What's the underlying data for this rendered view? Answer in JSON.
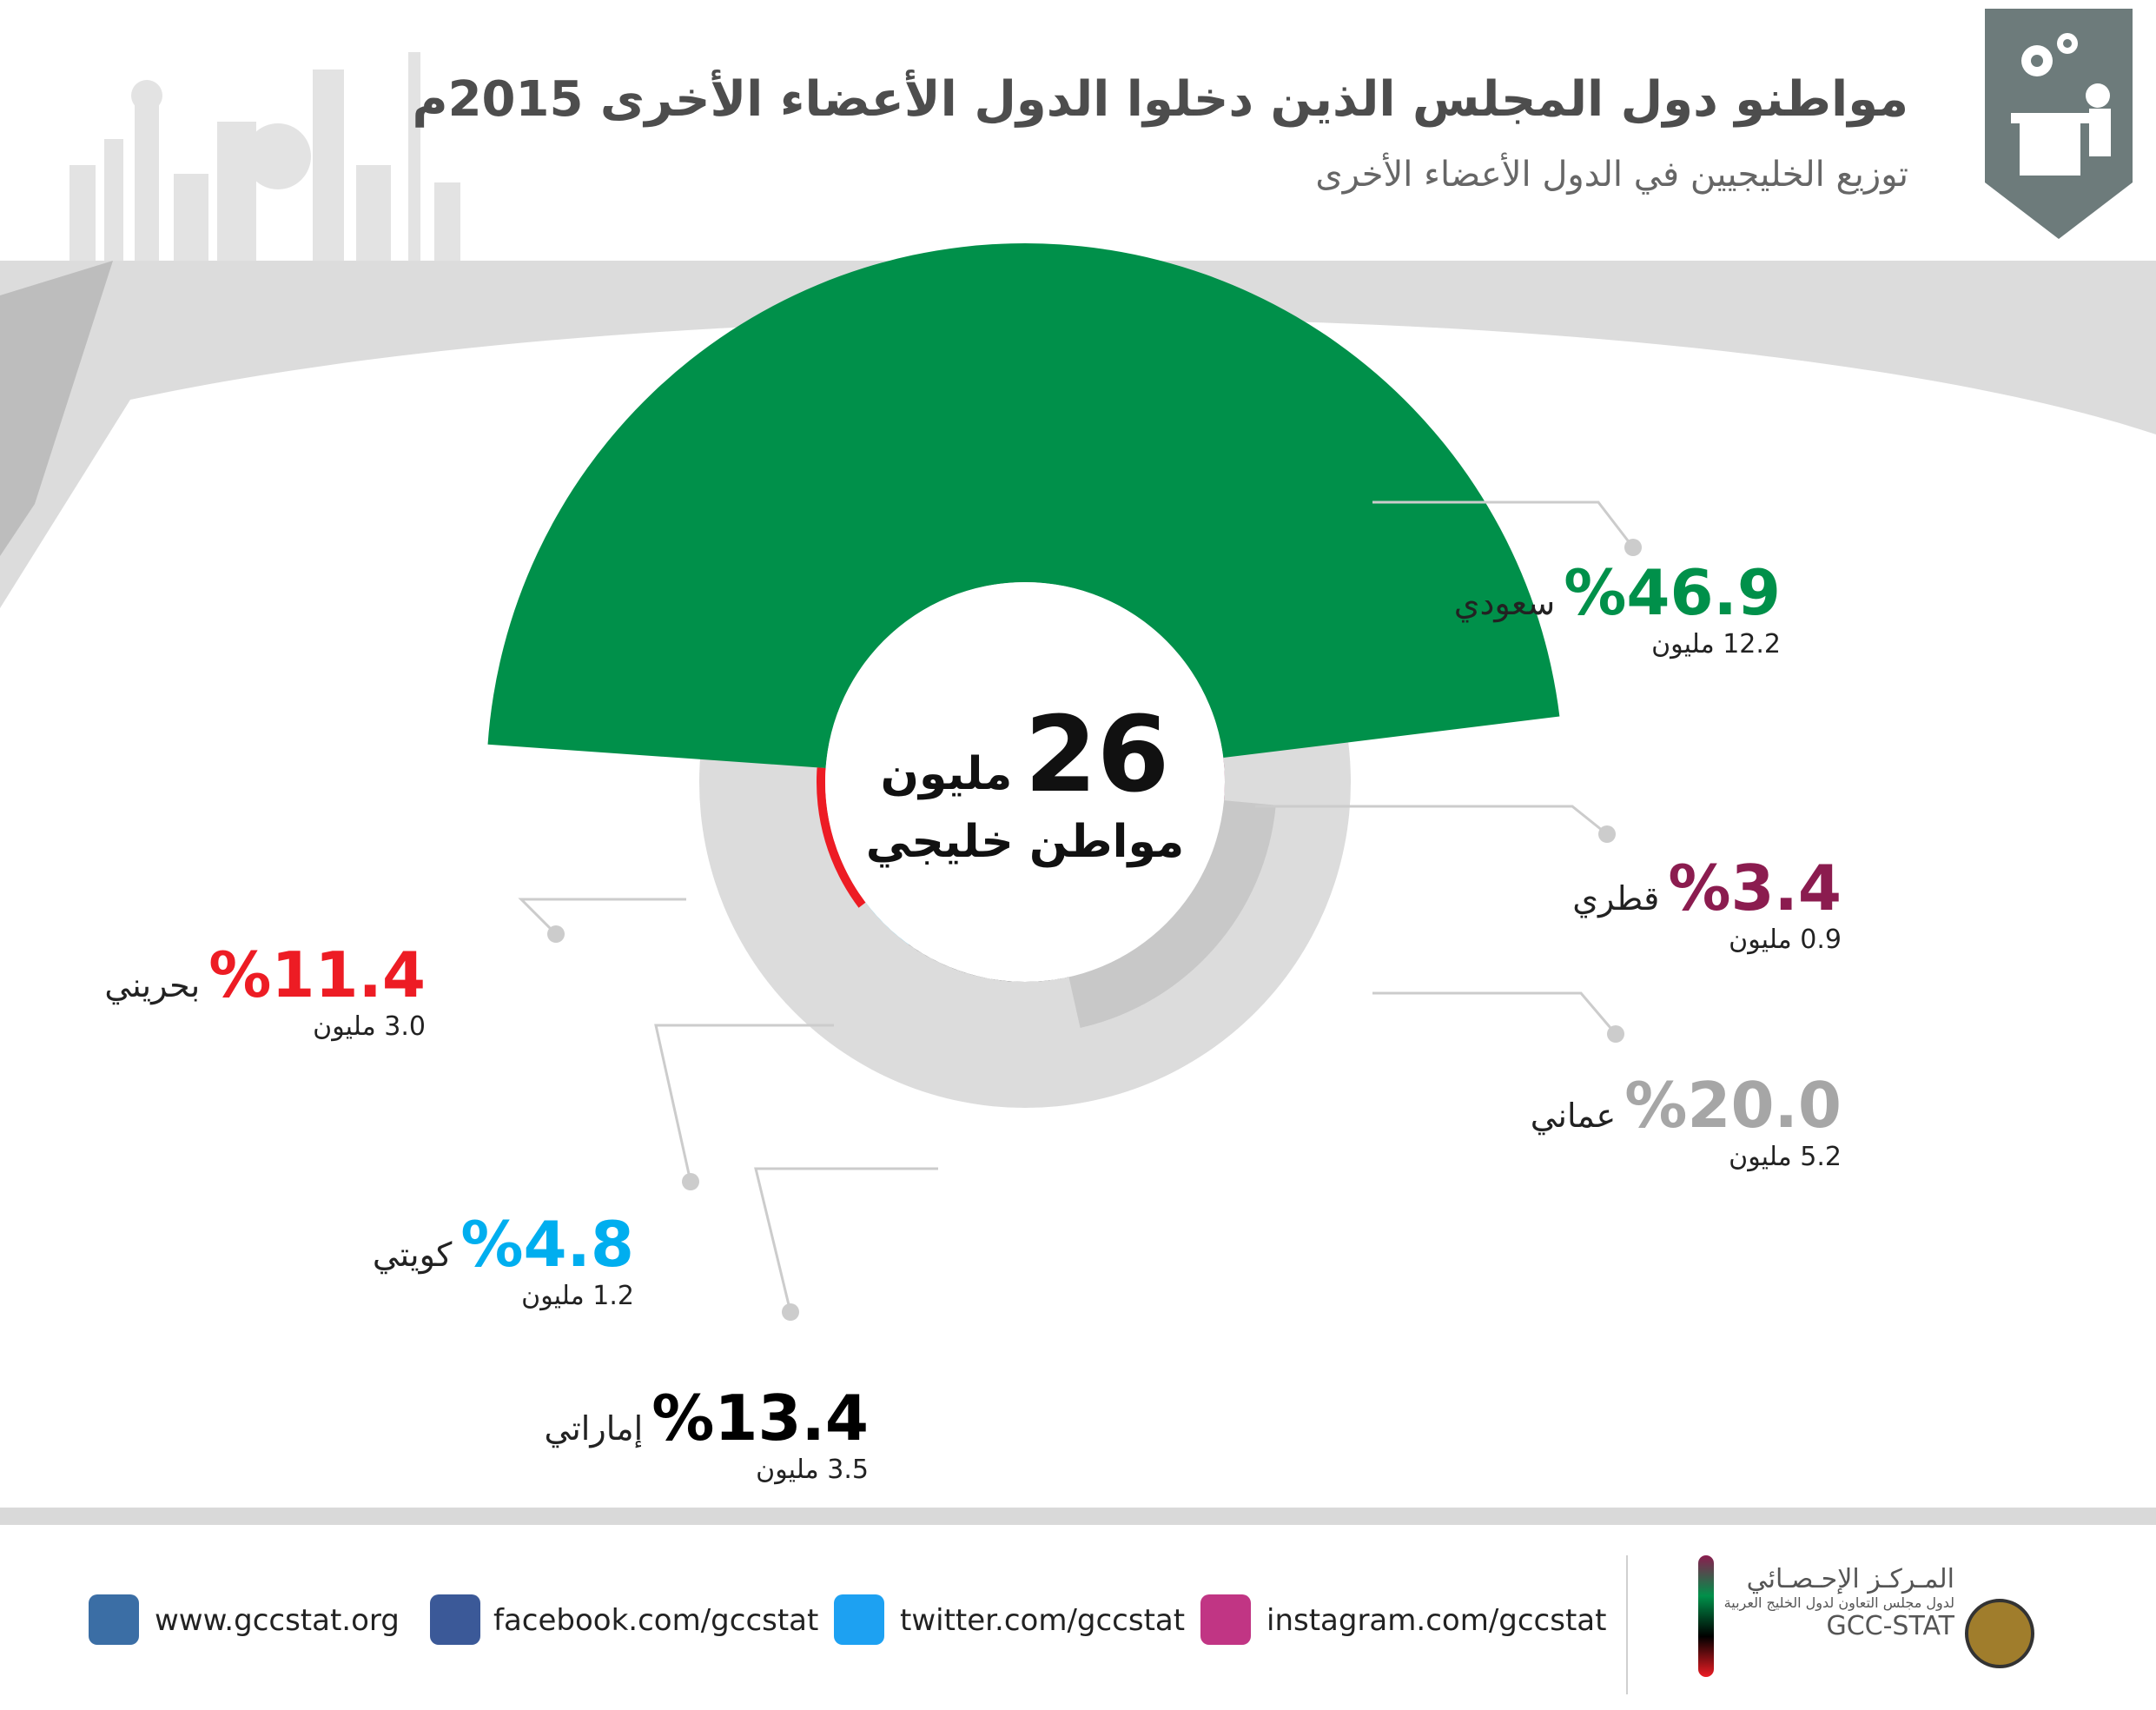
{
  "header": {
    "title": "مواطنو دول المجلس الذين دخلوا الدول الأعضاء الأخرى 2015م",
    "subtitle": "توزيع الخليجيين في الدول الأعضاء الأخرى"
  },
  "center": {
    "number": "26",
    "unit": "مليون",
    "caption": "مواطن خليجي"
  },
  "chart_data": {
    "type": "pie",
    "total_label": "26 مليون مواطن خليجي",
    "slices": [
      {
        "name": "سعودي",
        "percent": 46.9,
        "percent_label": "%46.9",
        "value_label": "12.2 مليون",
        "color": "#00904a"
      },
      {
        "name": "قطري",
        "percent": 3.4,
        "percent_label": "%3.4",
        "value_label": "0.9 مليون",
        "color": "#8b1c4f"
      },
      {
        "name": "عماني",
        "percent": 20.0,
        "percent_label": "%20.0",
        "value_label": "5.2 مليون",
        "color": "#c8c8c8"
      },
      {
        "name": "إماراتي",
        "percent": 13.4,
        "percent_label": "%13.4",
        "value_label": "3.5 مليون",
        "color": "#000000"
      },
      {
        "name": "كويتي",
        "percent": 4.8,
        "percent_label": "%4.8",
        "value_label": "1.2 مليون",
        "color": "#00aeef"
      },
      {
        "name": "بحريني",
        "percent": 11.4,
        "percent_label": "%11.4",
        "value_label": "3.0 مليون",
        "color": "#ed1c24"
      }
    ]
  },
  "footer": {
    "links": [
      {
        "text": "www.gccstat.org",
        "icon": "wordpress-icon"
      },
      {
        "text": "facebook.com/gccstat",
        "icon": "facebook-icon"
      },
      {
        "text": "twitter.com/gccstat",
        "icon": "twitter-icon"
      },
      {
        "text": "instagram.com/gccstat",
        "icon": "instagram-icon"
      }
    ],
    "logo_text": {
      "line1": "المـركـز الإحـصـائي",
      "line2": "لدول مجلس التعاون لدول الخليج العربية",
      "line3": "GCC-STAT"
    }
  },
  "colors": {
    "header_text": "#4d4d4d",
    "badge": "#6d7b7b",
    "ring_inner": "#dcdcdc",
    "leader": "#cccccc"
  }
}
